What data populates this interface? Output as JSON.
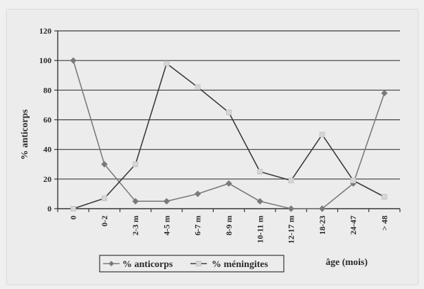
{
  "chart_data": {
    "type": "line",
    "title": "",
    "xlabel": "âge (mois)",
    "ylabel": "% anticorps",
    "categories": [
      "0",
      "0-2",
      "2-3 m",
      "4-5 m",
      "6-7 m",
      "8-9 m",
      "10-11 m",
      "12-17 m",
      "18-23",
      "24-47",
      "> 48"
    ],
    "ylim": [
      0,
      120
    ],
    "yticks": [
      0,
      20,
      40,
      60,
      80,
      100,
      120
    ],
    "grid": true,
    "legend_position": "bottom-center",
    "series": [
      {
        "name": "% anticorps",
        "color": "#7a7a7a",
        "marker": "diamond",
        "values": [
          100,
          30,
          5,
          5,
          10,
          17,
          5,
          0,
          0,
          17,
          78
        ]
      },
      {
        "name": "% méningites",
        "color": "#3a3a3a",
        "marker": "square",
        "values": [
          0,
          7,
          30,
          98,
          82,
          65,
          25,
          19,
          50,
          19,
          8
        ]
      }
    ]
  }
}
